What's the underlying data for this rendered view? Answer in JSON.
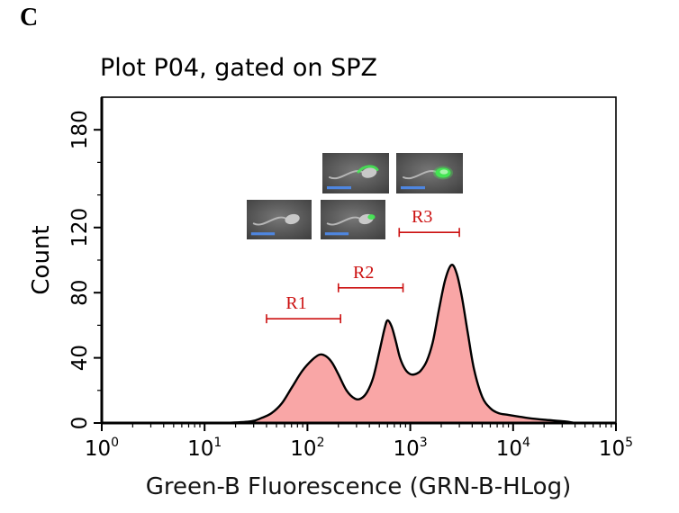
{
  "panel_label": "C",
  "chart_data": {
    "type": "area",
    "title": "Plot P04, gated on SPZ",
    "xlabel": "Green-B Fluorescence (GRN-B-HLog)",
    "ylabel": "Count",
    "x_scale": "log10",
    "xlim_log10": [
      0,
      5
    ],
    "ylim": [
      0,
      200
    ],
    "x_tick_exponents": [
      0,
      1,
      2,
      3,
      4,
      5
    ],
    "y_tick_labels": [
      0,
      40,
      80,
      120,
      180
    ],
    "y_minor_ticks": [
      20,
      60,
      100,
      140,
      160
    ],
    "grid": false,
    "legend": "none",
    "curve_log10x": [
      1.2,
      1.45,
      1.55,
      1.65,
      1.75,
      1.85,
      1.95,
      2.05,
      2.12,
      2.18,
      2.24,
      2.3,
      2.38,
      2.46,
      2.52,
      2.58,
      2.64,
      2.7,
      2.75,
      2.78,
      2.82,
      2.86,
      2.9,
      2.95,
      3.0,
      3.05,
      3.1,
      3.16,
      3.22,
      3.28,
      3.34,
      3.4,
      3.45,
      3.5,
      3.56,
      3.62,
      3.7,
      3.78,
      3.86,
      3.95,
      4.05,
      4.15,
      4.3,
      4.5,
      4.6
    ],
    "curve_counts": [
      0,
      1,
      3,
      6,
      12,
      22,
      32,
      39,
      42,
      41,
      37,
      30,
      20,
      15,
      15,
      19,
      28,
      44,
      58,
      63,
      59,
      50,
      40,
      33,
      30,
      30,
      32,
      38,
      50,
      70,
      88,
      97,
      92,
      78,
      55,
      33,
      16,
      9,
      6,
      5,
      4,
      3,
      2,
      1,
      0
    ],
    "peaks": [
      {
        "x": 150,
        "count": 42
      },
      {
        "x": 600,
        "count": 63
      },
      {
        "x": 2500,
        "count": 97
      }
    ],
    "gates": [
      {
        "label": "R1",
        "from": 40,
        "to": 210,
        "count": 64
      },
      {
        "label": "R2",
        "from": 200,
        "to": 850,
        "count": 83
      },
      {
        "label": "R3",
        "from": 780,
        "to": 3000,
        "count": 117
      }
    ],
    "fill_color": "#F9A6A6",
    "outline_color": "#000000",
    "gate_color": "#CC1111"
  },
  "inset_micrographs": [
    {
      "name": "sperm-micrograph-band-stain",
      "stain": "band"
    },
    {
      "name": "sperm-micrograph-full-head-stain",
      "stain": "full"
    },
    {
      "name": "sperm-micrograph-unstained",
      "stain": "none"
    },
    {
      "name": "sperm-micrograph-head-spot-stain",
      "stain": "spot"
    }
  ],
  "colors": {
    "scalebar_blue": "#4E86E0",
    "stain_green": "#44E553",
    "micrograph_bg": "#3C3C3C"
  }
}
